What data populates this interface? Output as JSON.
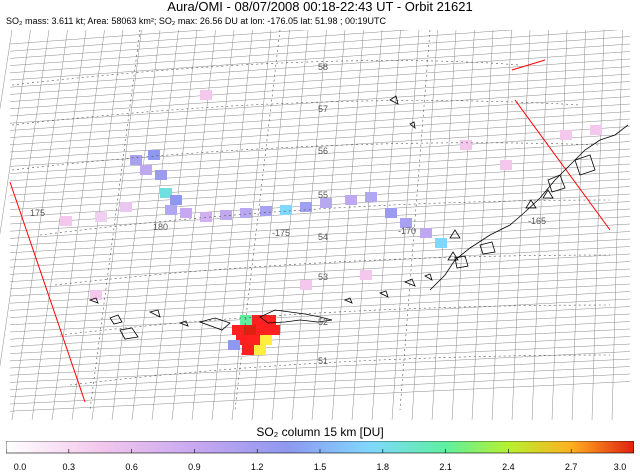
{
  "header": {
    "title": "Aura/OMI - 08/07/2008 00:18-22:43 UT - Orbit 21621",
    "subtitle": "SO₂ mass: 3.611 kt; Area: 58063 km²; SO₂ max: 26.56 DU at lon: -176.05 lat: 51.98 ; 00:19UTC"
  },
  "map": {
    "lat_labels": [
      "58",
      "57",
      "56",
      "55",
      "54",
      "53",
      "52",
      "51"
    ],
    "lon_labels": [
      "175",
      "180",
      "-175",
      "-170",
      "-165"
    ],
    "colors": {
      "swath_grid": "#8a8a8a",
      "coastline": "#000000",
      "domain_edge": "#ff0000",
      "high_so2": "#ff2020"
    }
  },
  "colorbar": {
    "title": "SO₂ column 15 km [DU]",
    "ticks": [
      "0.0",
      "0.3",
      "0.6",
      "0.9",
      "1.2",
      "1.5",
      "1.8",
      "2.1",
      "2.4",
      "2.7",
      "3.0"
    ]
  }
}
